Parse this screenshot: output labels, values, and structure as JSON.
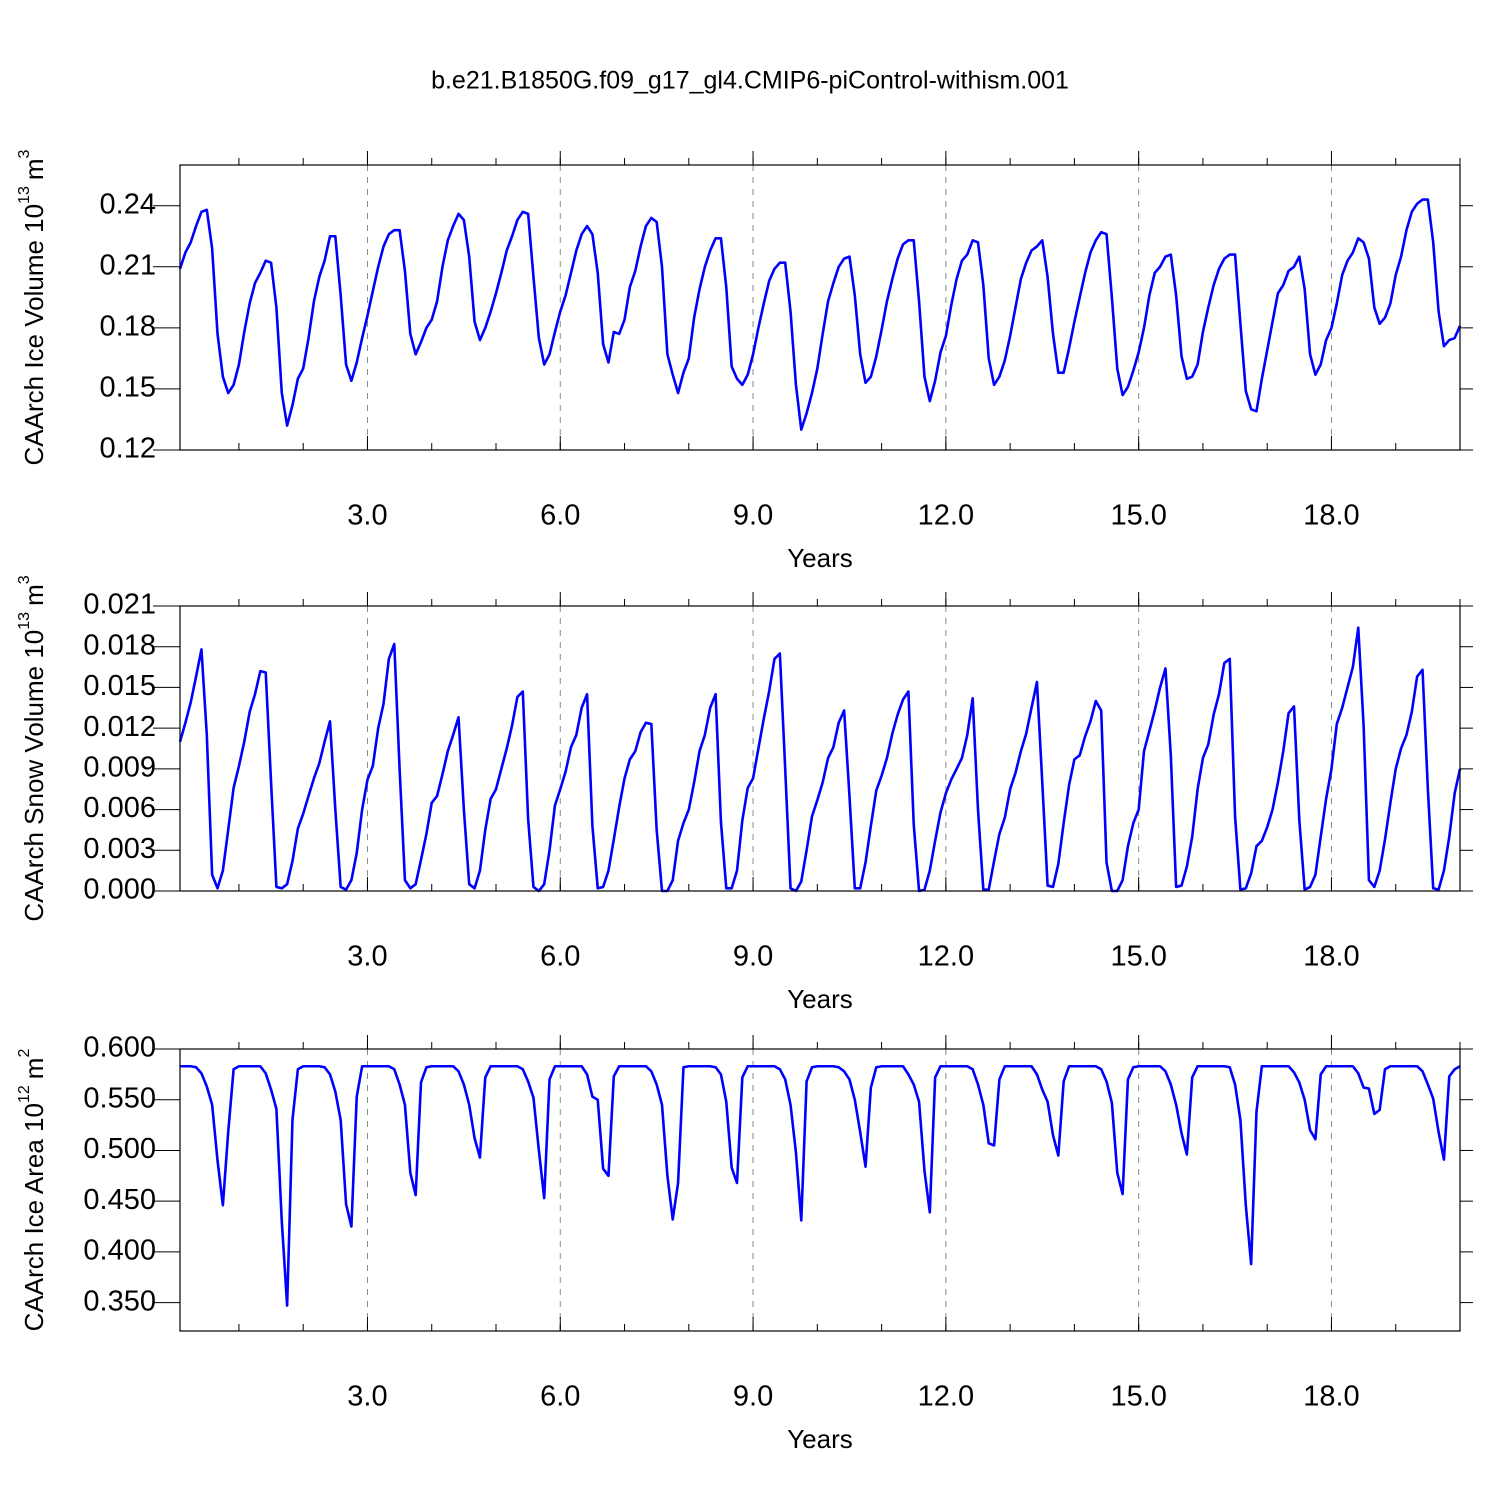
{
  "chart_data": {
    "type": "line",
    "title": "b.e21.B1850G.f09_g17_gl4.CMIP6-piControl-withism.001",
    "xlabel": "Years",
    "xlim": [
      0.083,
      20
    ],
    "xticks": [
      {
        "value": 3,
        "label": "3.0"
      },
      {
        "value": 6,
        "label": "6.0"
      },
      {
        "value": 9,
        "label": "9.0"
      },
      {
        "value": 12,
        "label": "12.0"
      },
      {
        "value": 15,
        "label": "15.0"
      },
      {
        "value": 18,
        "label": "18.0"
      }
    ],
    "xminorticks": [
      1,
      2,
      3,
      4,
      5,
      6,
      7,
      8,
      9,
      10,
      11,
      12,
      13,
      14,
      15,
      16,
      17,
      18,
      19,
      20
    ],
    "grid": true,
    "x": [
      0.083,
      0.167,
      0.25,
      0.333,
      0.417,
      0.5,
      0.583,
      0.667,
      0.75,
      0.833,
      0.917,
      1,
      1.083,
      1.167,
      1.25,
      1.333,
      1.417,
      1.5,
      1.583,
      1.667,
      1.75,
      1.833,
      1.917,
      2,
      2.083,
      2.167,
      2.25,
      2.333,
      2.417,
      2.5,
      2.583,
      2.667,
      2.75,
      2.833,
      2.917,
      3,
      3.083,
      3.167,
      3.25,
      3.333,
      3.417,
      3.5,
      3.583,
      3.667,
      3.75,
      3.833,
      3.917,
      4,
      4.083,
      4.167,
      4.25,
      4.333,
      4.417,
      4.5,
      4.583,
      4.667,
      4.75,
      4.833,
      4.917,
      5,
      5.083,
      5.167,
      5.25,
      5.333,
      5.417,
      5.5,
      5.583,
      5.667,
      5.75,
      5.833,
      5.917,
      6,
      6.083,
      6.167,
      6.25,
      6.333,
      6.417,
      6.5,
      6.583,
      6.667,
      6.75,
      6.833,
      6.917,
      7,
      7.083,
      7.167,
      7.25,
      7.333,
      7.417,
      7.5,
      7.583,
      7.667,
      7.75,
      7.833,
      7.917,
      8,
      8.083,
      8.167,
      8.25,
      8.333,
      8.417,
      8.5,
      8.583,
      8.667,
      8.75,
      8.833,
      8.917,
      9,
      9.083,
      9.167,
      9.25,
      9.333,
      9.417,
      9.5,
      9.583,
      9.667,
      9.75,
      9.833,
      9.917,
      10,
      10.083,
      10.167,
      10.25,
      10.333,
      10.417,
      10.5,
      10.583,
      10.667,
      10.75,
      10.833,
      10.917,
      11,
      11.083,
      11.167,
      11.25,
      11.333,
      11.417,
      11.5,
      11.583,
      11.667,
      11.75,
      11.833,
      11.917,
      12,
      12.083,
      12.167,
      12.25,
      12.333,
      12.417,
      12.5,
      12.583,
      12.667,
      12.75,
      12.833,
      12.917,
      13,
      13.083,
      13.167,
      13.25,
      13.333,
      13.417,
      13.5,
      13.583,
      13.667,
      13.75,
      13.833,
      13.917,
      14,
      14.083,
      14.167,
      14.25,
      14.333,
      14.417,
      14.5,
      14.583,
      14.667,
      14.75,
      14.833,
      14.917,
      15,
      15.083,
      15.167,
      15.25,
      15.333,
      15.417,
      15.5,
      15.583,
      15.667,
      15.75,
      15.833,
      15.917,
      16,
      16.083,
      16.167,
      16.25,
      16.333,
      16.417,
      16.5,
      16.583,
      16.667,
      16.75,
      16.833,
      16.917,
      17,
      17.083,
      17.167,
      17.25,
      17.333,
      17.417,
      17.5,
      17.583,
      17.667,
      17.75,
      17.833,
      17.917,
      18,
      18.083,
      18.167,
      18.25,
      18.333,
      18.417,
      18.5,
      18.583,
      18.667,
      18.75,
      18.833,
      18.917,
      19,
      19.083,
      19.167,
      19.25,
      19.333,
      19.417,
      19.5,
      19.583,
      19.667,
      19.75,
      19.833,
      19.917,
      20
    ],
    "panels": [
      {
        "ylabel": {
          "text": "CAArch Ice Volume 10",
          "exponent": "13",
          "unit": "m",
          "unit_exponent": "3"
        },
        "ylim": [
          0.12,
          0.26
        ],
        "yticks": [
          0.12,
          0.15,
          0.18,
          0.21,
          0.24
        ],
        "color": "#0000ff",
        "values": [
          0.209,
          0.217,
          0.222,
          0.23,
          0.237,
          0.238,
          0.219,
          0.177,
          0.156,
          0.148,
          0.152,
          0.162,
          0.178,
          0.192,
          0.202,
          0.207,
          0.213,
          0.212,
          0.19,
          0.148,
          0.132,
          0.142,
          0.155,
          0.16,
          0.175,
          0.193,
          0.205,
          0.213,
          0.225,
          0.225,
          0.196,
          0.162,
          0.154,
          0.163,
          0.175,
          0.186,
          0.198,
          0.21,
          0.22,
          0.226,
          0.228,
          0.228,
          0.208,
          0.177,
          0.167,
          0.173,
          0.18,
          0.184,
          0.193,
          0.21,
          0.223,
          0.23,
          0.236,
          0.233,
          0.215,
          0.183,
          0.174,
          0.18,
          0.188,
          0.197,
          0.207,
          0.218,
          0.225,
          0.233,
          0.237,
          0.236,
          0.205,
          0.175,
          0.162,
          0.167,
          0.178,
          0.188,
          0.196,
          0.207,
          0.218,
          0.226,
          0.23,
          0.226,
          0.207,
          0.172,
          0.163,
          0.178,
          0.177,
          0.184,
          0.2,
          0.208,
          0.22,
          0.23,
          0.234,
          0.232,
          0.21,
          0.167,
          0.157,
          0.148,
          0.158,
          0.165,
          0.185,
          0.199,
          0.21,
          0.218,
          0.224,
          0.224,
          0.2,
          0.161,
          0.155,
          0.152,
          0.157,
          0.167,
          0.18,
          0.192,
          0.203,
          0.209,
          0.212,
          0.212,
          0.188,
          0.152,
          0.13,
          0.138,
          0.148,
          0.16,
          0.177,
          0.193,
          0.202,
          0.21,
          0.214,
          0.215,
          0.196,
          0.167,
          0.153,
          0.156,
          0.166,
          0.179,
          0.193,
          0.204,
          0.214,
          0.221,
          0.223,
          0.223,
          0.193,
          0.156,
          0.144,
          0.154,
          0.168,
          0.176,
          0.191,
          0.204,
          0.213,
          0.216,
          0.223,
          0.222,
          0.201,
          0.165,
          0.152,
          0.156,
          0.164,
          0.176,
          0.19,
          0.204,
          0.212,
          0.218,
          0.22,
          0.223,
          0.205,
          0.177,
          0.158,
          0.158,
          0.17,
          0.183,
          0.195,
          0.207,
          0.217,
          0.223,
          0.227,
          0.226,
          0.195,
          0.16,
          0.147,
          0.151,
          0.159,
          0.168,
          0.18,
          0.196,
          0.207,
          0.21,
          0.215,
          0.216,
          0.196,
          0.166,
          0.155,
          0.156,
          0.162,
          0.178,
          0.19,
          0.201,
          0.209,
          0.214,
          0.216,
          0.216,
          0.182,
          0.149,
          0.14,
          0.139,
          0.155,
          0.169,
          0.183,
          0.197,
          0.201,
          0.208,
          0.21,
          0.215,
          0.199,
          0.167,
          0.157,
          0.162,
          0.174,
          0.18,
          0.192,
          0.206,
          0.213,
          0.217,
          0.224,
          0.222,
          0.214,
          0.19,
          0.182,
          0.185,
          0.192,
          0.206,
          0.215,
          0.228,
          0.237,
          0.241,
          0.243,
          0.243,
          0.222,
          0.188,
          0.171,
          0.174,
          0.175,
          0.181
        ]
      },
      {
        "ylabel": {
          "text": "CAArch Snow Volume 10",
          "exponent": "13",
          "unit": "m",
          "unit_exponent": "3"
        },
        "ylim": [
          0,
          0.021
        ],
        "yticks": [
          {
            "value": 0,
            "label": "0.000"
          },
          0.003,
          0.006,
          0.009,
          0.012,
          0.015,
          0.018,
          0.021
        ],
        "color": "#0000ff",
        "values": [
          0.011,
          0.0124,
          0.0139,
          0.0158,
          0.0178,
          0.0115,
          0.0012,
          0.0002,
          0.0015,
          0.0045,
          0.0076,
          0.0092,
          0.011,
          0.0132,
          0.0145,
          0.0162,
          0.0161,
          0.008,
          0.0003,
          0.0002,
          0.0005,
          0.0022,
          0.0046,
          0.0057,
          0.007,
          0.0083,
          0.0094,
          0.011,
          0.0125,
          0.006,
          0.0003,
          0.0001,
          0.0008,
          0.0028,
          0.006,
          0.0082,
          0.0092,
          0.012,
          0.0138,
          0.0171,
          0.0182,
          0.009,
          0.0008,
          0.0002,
          0.0005,
          0.0023,
          0.0042,
          0.0065,
          0.007,
          0.0086,
          0.0103,
          0.0115,
          0.0128,
          0.006,
          0.0005,
          0.0002,
          0.0015,
          0.0045,
          0.0068,
          0.0075,
          0.009,
          0.0105,
          0.0122,
          0.0143,
          0.0147,
          0.0053,
          0.0003,
          0.0,
          0.0005,
          0.003,
          0.0063,
          0.0075,
          0.0088,
          0.0106,
          0.0115,
          0.0135,
          0.0145,
          0.0048,
          0.0002,
          0.0003,
          0.0015,
          0.0038,
          0.0062,
          0.0083,
          0.0097,
          0.0103,
          0.0117,
          0.0124,
          0.0123,
          0.0045,
          0.0,
          0.0,
          0.0008,
          0.0037,
          0.005,
          0.006,
          0.008,
          0.0103,
          0.0115,
          0.0135,
          0.0145,
          0.0051,
          0.0002,
          0.0002,
          0.0015,
          0.0052,
          0.0076,
          0.0083,
          0.0105,
          0.0127,
          0.0147,
          0.0171,
          0.0175,
          0.009,
          0.0002,
          0.0,
          0.0007,
          0.003,
          0.0055,
          0.0067,
          0.008,
          0.0098,
          0.0106,
          0.0124,
          0.0133,
          0.007,
          0.0002,
          0.0002,
          0.0021,
          0.0048,
          0.0074,
          0.0085,
          0.0098,
          0.0116,
          0.013,
          0.0141,
          0.0147,
          0.0049,
          0.0,
          0.0001,
          0.0015,
          0.0037,
          0.0058,
          0.0072,
          0.0082,
          0.009,
          0.0098,
          0.0115,
          0.0142,
          0.006,
          0.0001,
          0.0001,
          0.0022,
          0.0042,
          0.0054,
          0.0075,
          0.0087,
          0.0103,
          0.0116,
          0.0135,
          0.0154,
          0.008,
          0.0004,
          0.0003,
          0.002,
          0.005,
          0.0078,
          0.0097,
          0.01,
          0.0114,
          0.0125,
          0.014,
          0.0133,
          0.0021,
          0.0,
          0.0,
          0.0008,
          0.0033,
          0.005,
          0.006,
          0.0103,
          0.0118,
          0.0133,
          0.015,
          0.0164,
          0.01,
          0.0003,
          0.0004,
          0.0018,
          0.004,
          0.0075,
          0.0098,
          0.0108,
          0.013,
          0.0145,
          0.0168,
          0.0171,
          0.0055,
          0.0001,
          0.0002,
          0.0013,
          0.0033,
          0.0037,
          0.0047,
          0.006,
          0.008,
          0.0103,
          0.0131,
          0.0136,
          0.0052,
          0.0001,
          0.0003,
          0.0012,
          0.004,
          0.0068,
          0.009,
          0.0123,
          0.0135,
          0.015,
          0.0165,
          0.0194,
          0.0122,
          0.0008,
          0.0003,
          0.0015,
          0.0038,
          0.0065,
          0.009,
          0.0105,
          0.0115,
          0.0132,
          0.0158,
          0.0163,
          0.0075,
          0.0002,
          0.0001,
          0.0015,
          0.004,
          0.0072,
          0.009
        ]
      },
      {
        "ylabel": {
          "text": "CAArch Ice Area 10",
          "exponent": "12",
          "unit": "m",
          "unit_exponent": "2"
        },
        "ylim": [
          0.322,
          0.6
        ],
        "yticks": [
          {
            "value": 0.35,
            "label": "0.350"
          },
          {
            "value": 0.4,
            "label": "0.400"
          },
          {
            "value": 0.45,
            "label": "0.450"
          },
          {
            "value": 0.5,
            "label": "0.500"
          },
          {
            "value": 0.55,
            "label": "0.550"
          },
          {
            "value": 0.6,
            "label": "0.600"
          }
        ],
        "color": "#0000ff",
        "values": [
          0.583,
          0.583,
          0.583,
          0.582,
          0.576,
          0.563,
          0.545,
          0.49,
          0.446,
          0.518,
          0.58,
          0.583,
          0.583,
          0.583,
          0.583,
          0.583,
          0.576,
          0.56,
          0.541,
          0.43,
          0.347,
          0.53,
          0.58,
          0.583,
          0.583,
          0.583,
          0.583,
          0.582,
          0.575,
          0.558,
          0.53,
          0.447,
          0.425,
          0.553,
          0.583,
          0.583,
          0.583,
          0.583,
          0.583,
          0.583,
          0.58,
          0.565,
          0.545,
          0.478,
          0.456,
          0.567,
          0.582,
          0.583,
          0.583,
          0.583,
          0.583,
          0.583,
          0.578,
          0.565,
          0.545,
          0.512,
          0.493,
          0.572,
          0.583,
          0.583,
          0.583,
          0.583,
          0.583,
          0.583,
          0.58,
          0.568,
          0.552,
          0.5,
          0.453,
          0.57,
          0.583,
          0.583,
          0.583,
          0.583,
          0.583,
          0.583,
          0.575,
          0.553,
          0.55,
          0.482,
          0.475,
          0.573,
          0.583,
          0.583,
          0.583,
          0.583,
          0.583,
          0.583,
          0.578,
          0.565,
          0.545,
          0.475,
          0.432,
          0.468,
          0.582,
          0.583,
          0.583,
          0.583,
          0.583,
          0.583,
          0.582,
          0.575,
          0.548,
          0.483,
          0.468,
          0.572,
          0.583,
          0.583,
          0.583,
          0.583,
          0.583,
          0.583,
          0.58,
          0.57,
          0.545,
          0.498,
          0.431,
          0.568,
          0.582,
          0.583,
          0.583,
          0.583,
          0.583,
          0.582,
          0.578,
          0.57,
          0.55,
          0.518,
          0.484,
          0.562,
          0.582,
          0.583,
          0.583,
          0.583,
          0.583,
          0.583,
          0.575,
          0.565,
          0.548,
          0.48,
          0.439,
          0.572,
          0.583,
          0.583,
          0.583,
          0.583,
          0.583,
          0.583,
          0.58,
          0.565,
          0.545,
          0.507,
          0.505,
          0.57,
          0.583,
          0.583,
          0.583,
          0.583,
          0.583,
          0.583,
          0.575,
          0.56,
          0.548,
          0.515,
          0.495,
          0.568,
          0.583,
          0.583,
          0.583,
          0.583,
          0.583,
          0.583,
          0.58,
          0.568,
          0.547,
          0.478,
          0.457,
          0.57,
          0.582,
          0.583,
          0.583,
          0.583,
          0.583,
          0.583,
          0.578,
          0.565,
          0.545,
          0.517,
          0.496,
          0.572,
          0.583,
          0.583,
          0.583,
          0.583,
          0.583,
          0.583,
          0.582,
          0.565,
          0.53,
          0.446,
          0.388,
          0.538,
          0.583,
          0.583,
          0.583,
          0.583,
          0.583,
          0.583,
          0.577,
          0.567,
          0.55,
          0.52,
          0.511,
          0.575,
          0.583,
          0.583,
          0.583,
          0.583,
          0.583,
          0.583,
          0.576,
          0.562,
          0.561,
          0.536,
          0.54,
          0.58,
          0.583,
          0.583,
          0.583,
          0.583,
          0.583,
          0.583,
          0.578,
          0.565,
          0.551,
          0.518,
          0.491,
          0.573,
          0.58,
          0.583
        ]
      }
    ]
  }
}
